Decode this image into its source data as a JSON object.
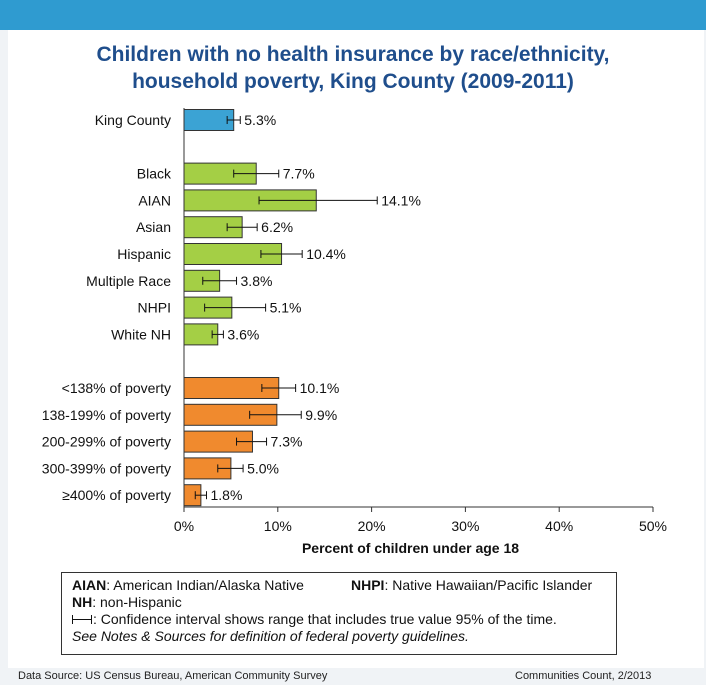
{
  "page": {
    "footer_source": "Data Source: US Census Bureau, American Community Survey",
    "footer_credit": "Communities Count, 2/2013"
  },
  "legend": {
    "aian_abbr": "AIAN",
    "aian_text": ": American Indian/Alaska Native",
    "nhpi_abbr": "NHPI",
    "nhpi_text": ": Native Hawaiian/Pacific Islander",
    "nh_abbr": "NH",
    "nh_text": ": non-Hispanic",
    "ci_text": ": Confidence interval shows range that includes true value 95% of the time.",
    "see_prefix": "See ",
    "see_notes": "Notes & Sources",
    "see_suffix": " for definition of federal poverty guidelines."
  },
  "colors": {
    "county": "#3ba3d4",
    "race": "#a4cf45",
    "poverty": "#f08a2e",
    "title": "#1f4e8c",
    "band": "#2f9bd0"
  },
  "chart_data": {
    "type": "bar",
    "orientation": "horizontal",
    "title_lines": [
      "Children with no health insurance by race/ethnicity,",
      "household poverty, King County (2009-2011)"
    ],
    "xlabel": "Percent of children under age 18",
    "ylabel": "",
    "xlim": [
      0,
      50
    ],
    "xticks": [
      "0%",
      "10%",
      "20%",
      "30%",
      "40%",
      "50%"
    ],
    "grid": false,
    "groups": [
      {
        "color_key": "county",
        "bars": [
          {
            "category": "King County",
            "value": 5.3,
            "label": "5.3%",
            "ci": [
              4.6,
              6.0
            ]
          }
        ]
      },
      {
        "color_key": "race",
        "bars": [
          {
            "category": "Black",
            "value": 7.7,
            "label": "7.7%",
            "ci": [
              5.3,
              10.1
            ]
          },
          {
            "category": "AIAN",
            "value": 14.1,
            "label": "14.1%",
            "ci": [
              8.0,
              20.6
            ]
          },
          {
            "category": "Asian",
            "value": 6.2,
            "label": "6.2%",
            "ci": [
              4.6,
              7.8
            ]
          },
          {
            "category": "Hispanic",
            "value": 10.4,
            "label": "10.4%",
            "ci": [
              8.2,
              12.6
            ]
          },
          {
            "category": "Multiple Race",
            "value": 3.8,
            "label": "3.8%",
            "ci": [
              2.0,
              5.6
            ]
          },
          {
            "category": "NHPI",
            "value": 5.1,
            "label": "5.1%",
            "ci": [
              2.2,
              8.7
            ]
          },
          {
            "category": "White NH",
            "value": 3.6,
            "label": "3.6%",
            "ci": [
              3.0,
              4.2
            ]
          }
        ]
      },
      {
        "color_key": "poverty",
        "bars": [
          {
            "category": "<138% of poverty",
            "value": 10.1,
            "label": "10.1%",
            "ci": [
              8.3,
              11.9
            ]
          },
          {
            "category": "138-199% of poverty",
            "value": 9.9,
            "label": "9.9%",
            "ci": [
              7.0,
              12.5
            ]
          },
          {
            "category": "200-299% of poverty",
            "value": 7.3,
            "label": "7.3%",
            "ci": [
              5.6,
              8.8
            ]
          },
          {
            "category": "300-399% of poverty",
            "value": 5.0,
            "label": "5.0%",
            "ci": [
              3.6,
              6.3
            ]
          },
          {
            "category": "≥400% of poverty",
            "value": 1.8,
            "label": "1.8%",
            "ci": [
              1.2,
              2.4
            ]
          }
        ]
      }
    ]
  }
}
